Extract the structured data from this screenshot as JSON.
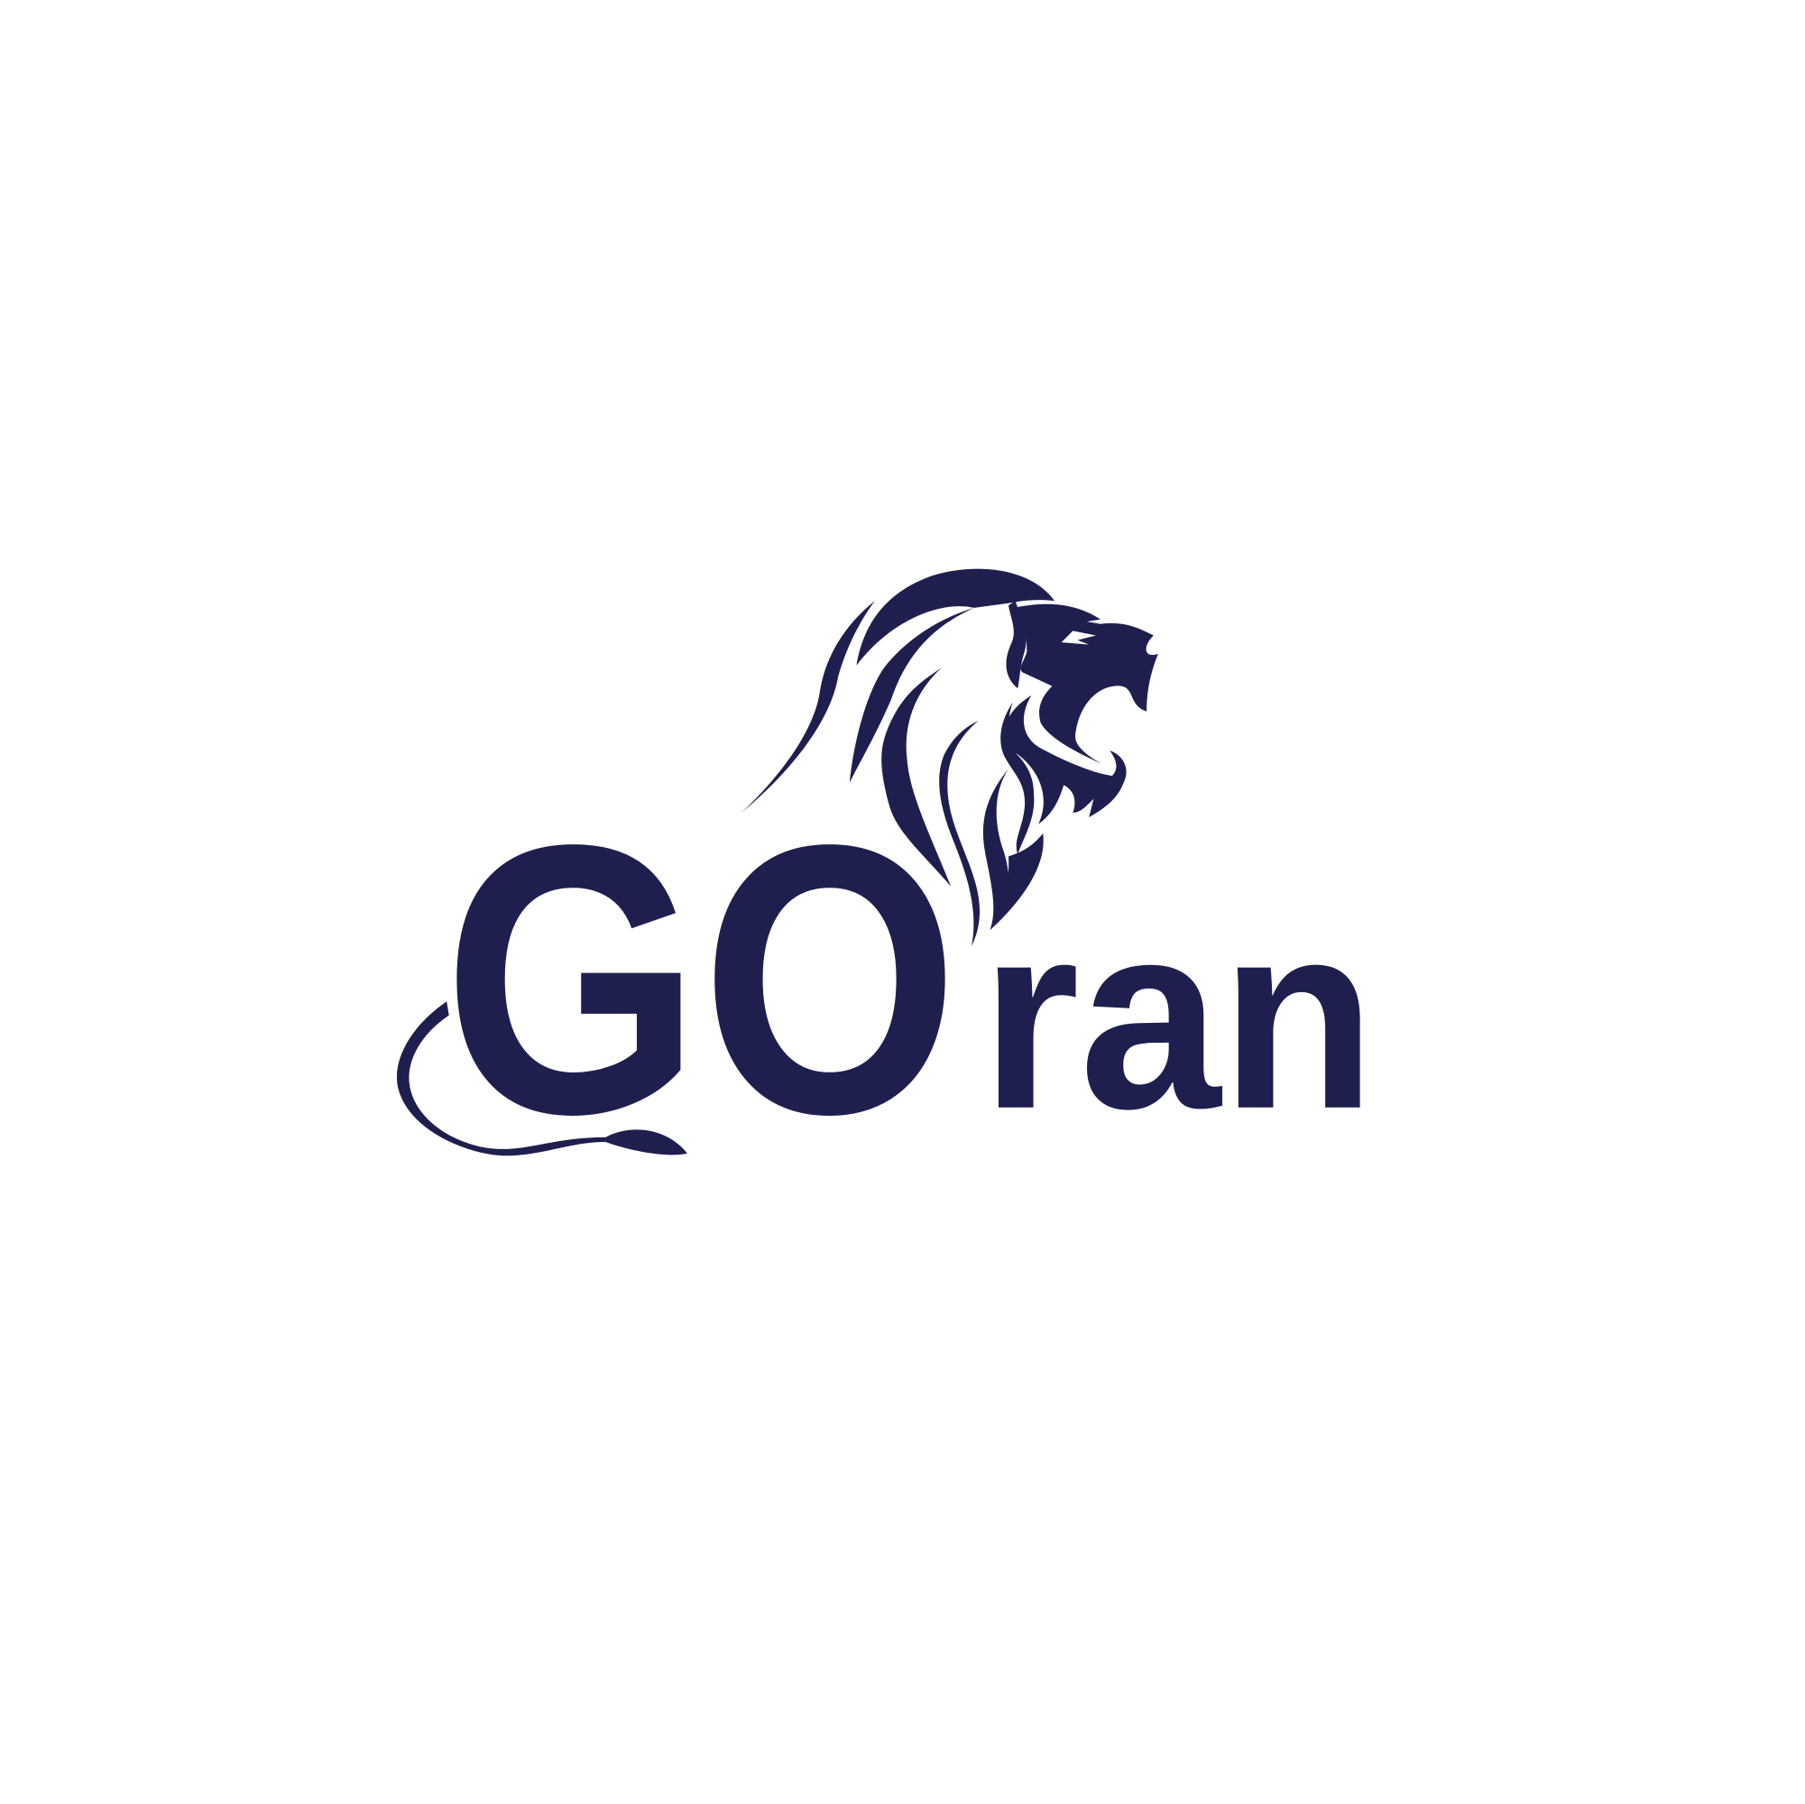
{
  "logo": {
    "wordmark": [
      "GO",
      "ran"
    ]
  }
}
